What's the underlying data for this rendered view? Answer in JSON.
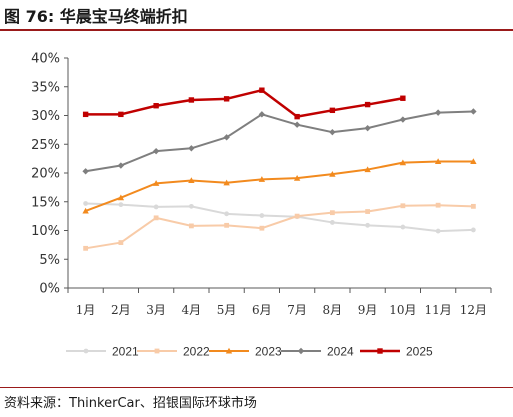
{
  "header": {
    "title": "图 76: 华晨宝马终端折扣"
  },
  "footer": {
    "source": "资料来源：ThinkerCar、招银国际环球市场"
  },
  "chart_data": {
    "type": "line",
    "title": "",
    "xlabel": "",
    "ylabel": "",
    "categories": [
      "1月",
      "2月",
      "3月",
      "4月",
      "5月",
      "6月",
      "7月",
      "8月",
      "9月",
      "10月",
      "11月",
      "12月"
    ],
    "yticks": [
      "0%",
      "5%",
      "10%",
      "15%",
      "20%",
      "25%",
      "30%",
      "35%",
      "40%"
    ],
    "ylim": [
      0,
      40
    ],
    "grid": false,
    "legend": "bottom",
    "series": [
      {
        "name": "2021",
        "color": "#d9d9d9",
        "marker": "circle",
        "values": [
          14.7,
          14.5,
          14.1,
          14.2,
          12.9,
          12.6,
          12.4,
          11.4,
          10.9,
          10.6,
          9.9,
          10.1
        ]
      },
      {
        "name": "2022",
        "color": "#f8cba8",
        "marker": "square",
        "values": [
          6.9,
          7.9,
          12.2,
          10.8,
          10.9,
          10.4,
          12.5,
          13.1,
          13.3,
          14.3,
          14.4,
          14.2
        ]
      },
      {
        "name": "2023",
        "color": "#f28a1e",
        "marker": "triangle",
        "values": [
          13.4,
          15.7,
          18.2,
          18.7,
          18.3,
          18.9,
          19.1,
          19.8,
          20.6,
          21.8,
          22.0,
          22.0
        ]
      },
      {
        "name": "2024",
        "color": "#7f7f7f",
        "marker": "diamond",
        "values": [
          20.3,
          21.3,
          23.8,
          24.3,
          26.2,
          30.2,
          28.4,
          27.1,
          27.8,
          29.3,
          30.5,
          30.7
        ]
      },
      {
        "name": "2025",
        "color": "#c00000",
        "marker": "square",
        "values": [
          30.2,
          30.2,
          31.7,
          32.7,
          32.9,
          34.4,
          29.8,
          30.9,
          31.9,
          33.0,
          null,
          null
        ]
      }
    ]
  }
}
